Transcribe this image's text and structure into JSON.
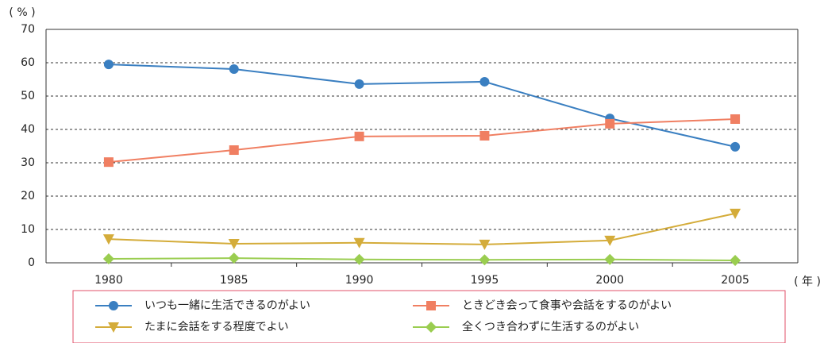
{
  "chart_data": {
    "type": "line",
    "y_unit": "( % )",
    "x_unit": "( 年 )",
    "categories": [
      "1980",
      "1985",
      "1990",
      "1995",
      "2000",
      "2005"
    ],
    "series": [
      {
        "name": "いつも一緒に生活できるのがよい",
        "color": "#3a7fc1",
        "marker": "circle",
        "values": [
          59.5,
          58.1,
          53.6,
          54.3,
          43.3,
          34.8
        ]
      },
      {
        "name": "ときどき会って食事や会話をするのがよい",
        "color": "#f07f62",
        "marker": "square",
        "values": [
          30.2,
          33.8,
          37.9,
          38.1,
          41.7,
          43.1
        ]
      },
      {
        "name": "たまに会話をする程度でよい",
        "color": "#d4ac3a",
        "marker": "triangle-down",
        "values": [
          7.1,
          5.7,
          6.0,
          5.5,
          6.7,
          14.8
        ]
      },
      {
        "name": "全くつき合わずに生活するのがよい",
        "color": "#9acd50",
        "marker": "diamond",
        "values": [
          1.2,
          1.4,
          1.0,
          0.9,
          1.0,
          0.7
        ]
      }
    ],
    "ylim": [
      0,
      70
    ],
    "yticks": [
      0,
      10,
      20,
      30,
      40,
      50,
      60,
      70
    ],
    "grid": true,
    "legend": "bottom"
  }
}
